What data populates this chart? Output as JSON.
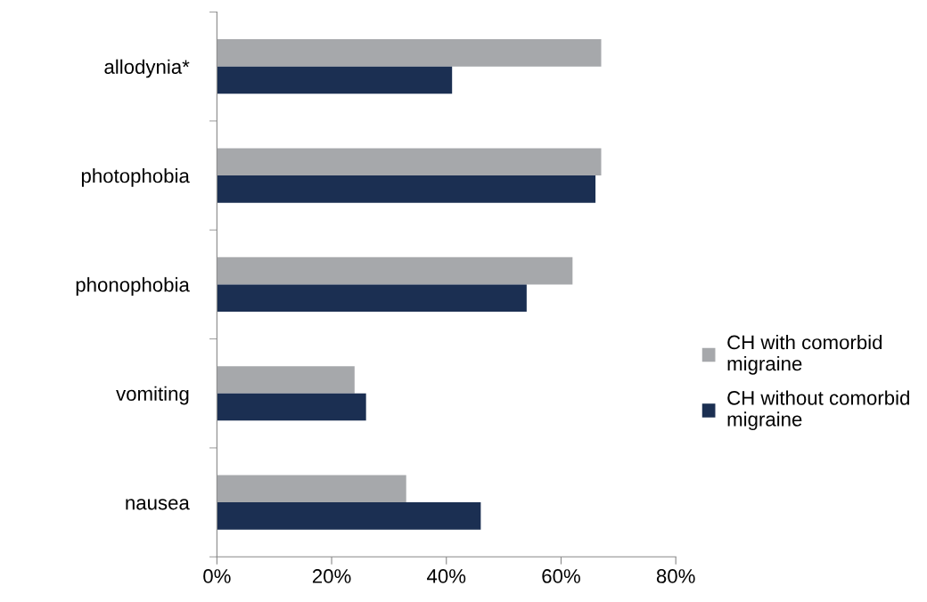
{
  "chart_data": {
    "type": "bar",
    "orientation": "horizontal",
    "categories": [
      "allodynia*",
      "photophobia",
      "phonophobia",
      "vomiting",
      "nausea"
    ],
    "series": [
      {
        "name": "CH with comorbid migraine",
        "color": "#a6a8ab",
        "values": [
          67,
          67,
          62,
          24,
          33
        ]
      },
      {
        "name": "CH without comorbid migraine",
        "color": "#1b2f52",
        "values": [
          41,
          66,
          54,
          26,
          46
        ]
      }
    ],
    "xlim": [
      0,
      80
    ],
    "xticks": [
      {
        "value": 0,
        "label": "0%"
      },
      {
        "value": 20,
        "label": "20%"
      },
      {
        "value": 40,
        "label": "40%"
      },
      {
        "value": 60,
        "label": "60%"
      },
      {
        "value": 80,
        "label": "80%"
      }
    ],
    "grid": false,
    "legend": "right"
  }
}
